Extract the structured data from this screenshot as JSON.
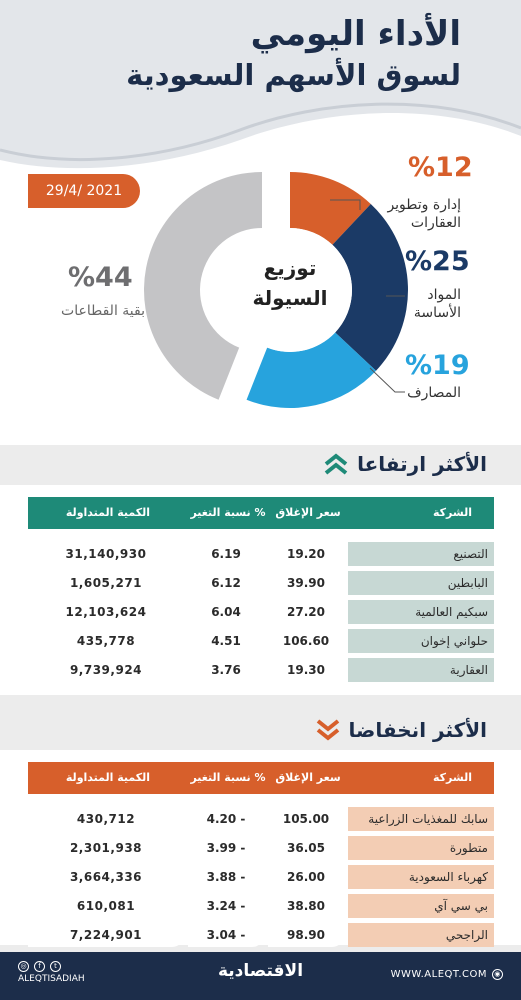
{
  "header": {
    "title_line1": "الأداء اليومي",
    "title_line2": "لسوق الأسهم السعودية",
    "date": "29/4/ 2021"
  },
  "liquidity": {
    "center_line1": "توزيع",
    "center_line2": "السيولة",
    "segments": [
      {
        "pct": "%12",
        "label_line1": "إدارة وتطوير",
        "label_line2": "العقارات",
        "value": 12,
        "color": "#d75f2b"
      },
      {
        "pct": "%25",
        "label_line1": "المواد",
        "label_line2": "الأساسة",
        "value": 25,
        "color": "#1b3a66"
      },
      {
        "pct": "%19",
        "label_line1": "المصارف",
        "label_line2": "",
        "value": 19,
        "color": "#27a3dd"
      },
      {
        "pct": "%44",
        "label_line1": "بقية القطاعات",
        "label_line2": "",
        "value": 44,
        "color": "#c4c4c6"
      }
    ]
  },
  "top_gainers": {
    "heading": "الأكثر ارتفاعا",
    "icon": "double-chevron-up-icon",
    "header_color": "#1e8a78",
    "name_color": "#c7d8d4",
    "columns": {
      "name": "الشركة",
      "close": "سعر الإغلاق",
      "change": "نسبة التغير %",
      "qty": "الكمية المتداولة"
    },
    "rows": [
      {
        "name": "التصنيع",
        "close": "19.20",
        "change": "6.19",
        "qty": "31,140,930"
      },
      {
        "name": "البابطين",
        "close": "39.90",
        "change": "6.12",
        "qty": "1,605,271"
      },
      {
        "name": "سبكيم العالمية",
        "close": "27.20",
        "change": "6.04",
        "qty": "12,103,624"
      },
      {
        "name": "حلواني إخوان",
        "close": "106.60",
        "change": "4.51",
        "qty": "435,778"
      },
      {
        "name": "العقارية",
        "close": "19.30",
        "change": "3.76",
        "qty": "9,739,924"
      }
    ]
  },
  "top_losers": {
    "heading": "الأكثر انخفاضا",
    "icon": "double-chevron-down-icon",
    "header_color": "#d75f2b",
    "name_color": "#f3cdb4",
    "columns": {
      "name": "الشركة",
      "close": "سعر الإغلاق",
      "change": "نسبة التغير %",
      "qty": "الكمية المتداولة"
    },
    "rows": [
      {
        "name": "سابك للمغذيات الزراعية",
        "close": "105.00",
        "change": "4.20 -",
        "qty": "430,712"
      },
      {
        "name": "متطورة",
        "close": "36.05",
        "change": "3.99 -",
        "qty": "2,301,938"
      },
      {
        "name": "كهرباء السعودية",
        "close": "26.00",
        "change": "3.88 -",
        "qty": "3,664,336"
      },
      {
        "name": "بي سي آي",
        "close": "38.80",
        "change": "3.24 -",
        "qty": "610,081"
      },
      {
        "name": "الراجحي",
        "close": "98.90",
        "change": "3.04 -",
        "qty": "7,224,901"
      }
    ]
  },
  "footer": {
    "website": "WWW.ALEQT.COM",
    "logo": "الاقتصادية",
    "social_handle": "ALEQTISADIAH",
    "social_icons": [
      "instagram-icon",
      "facebook-icon",
      "twitter-icon"
    ]
  }
}
